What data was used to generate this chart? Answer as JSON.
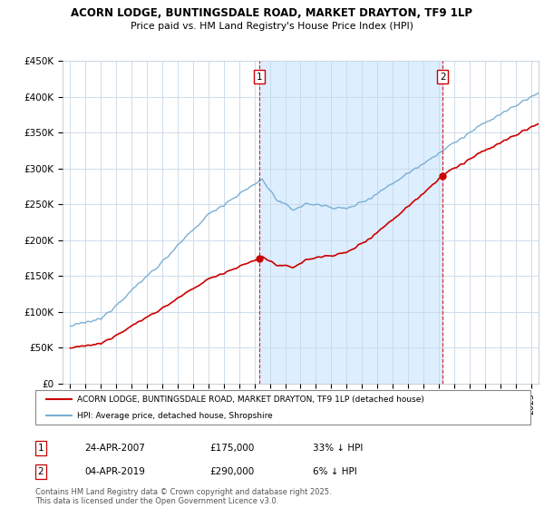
{
  "title": "ACORN LODGE, BUNTINGSDALE ROAD, MARKET DRAYTON, TF9 1LP",
  "subtitle": "Price paid vs. HM Land Registry's House Price Index (HPI)",
  "sale1_year": 2007.31,
  "sale1_price": 175000,
  "sale1_label": "1",
  "sale2_year": 2019.25,
  "sale2_price": 290000,
  "sale2_label": "2",
  "legend_line1": "ACORN LODGE, BUNTINGSDALE ROAD, MARKET DRAYTON, TF9 1LP (detached house)",
  "legend_line2": "HPI: Average price, detached house, Shropshire",
  "table_row1": [
    "1",
    "24-APR-2007",
    "£175,000",
    "33% ↓ HPI"
  ],
  "table_row2": [
    "2",
    "04-APR-2019",
    "£290,000",
    "6% ↓ HPI"
  ],
  "footnote": "Contains HM Land Registry data © Crown copyright and database right 2025.\nThis data is licensed under the Open Government Licence v3.0.",
  "hpi_color": "#7bafd4",
  "sale_color": "#cc0000",
  "background_color": "#ffffff",
  "grid_color": "#c8d8e8",
  "shade_color": "#ddeeff",
  "ylim": [
    0,
    450000
  ],
  "xlim_start": 1994.5,
  "xlim_end": 2025.5,
  "dashed_color": "#cc0000",
  "title_fontsize": 9,
  "subtitle_fontsize": 8.5
}
